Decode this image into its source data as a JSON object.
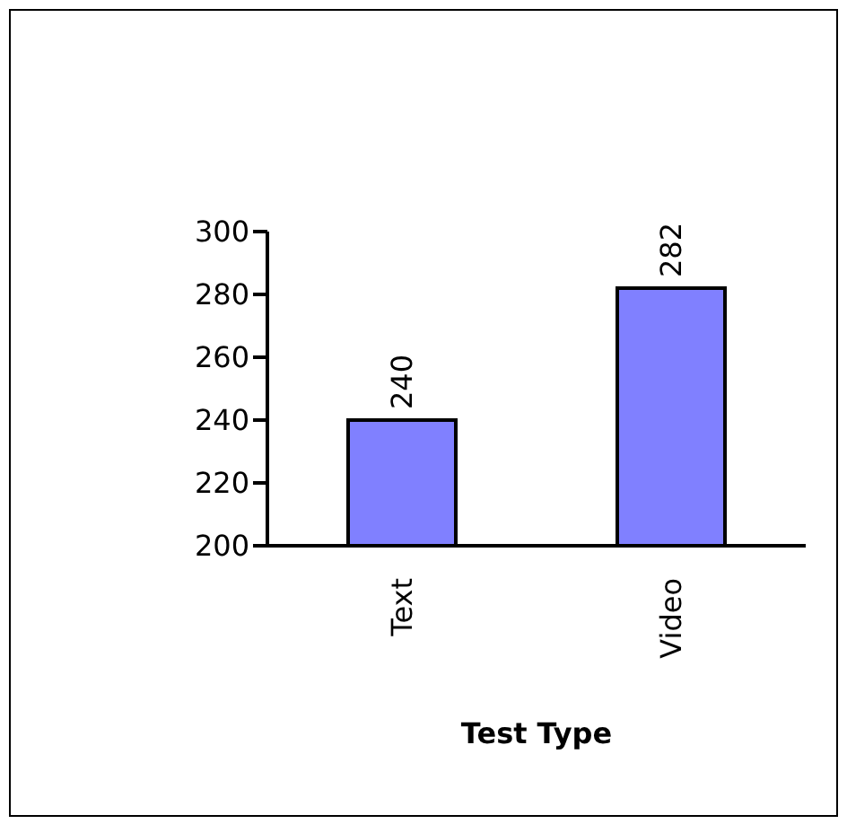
{
  "chart_data": {
    "type": "bar",
    "xlabel": "Test Type",
    "categories": [
      "Text",
      "Video"
    ],
    "values": [
      240,
      282
    ],
    "color": "#8080ff",
    "ylim": [
      200,
      300
    ],
    "yticks": [
      200,
      220,
      240,
      260,
      280,
      300
    ],
    "data_labels": true,
    "grid": false,
    "legend": false
  }
}
